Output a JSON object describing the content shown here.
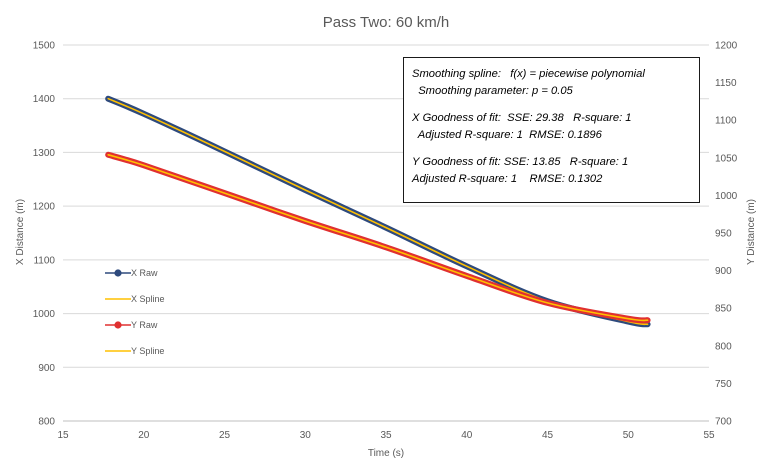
{
  "chart_data": {
    "type": "line",
    "title": "Pass Two: 60 km/h",
    "xlabel": "Time (s)",
    "ylabel": "X Distance (m)",
    "y2label": "Y Distance (m)",
    "xlim": [
      15,
      55
    ],
    "ylim": [
      800,
      1500
    ],
    "y2lim": [
      700,
      1200
    ],
    "xticks": [
      "15",
      "20",
      "25",
      "30",
      "35",
      "40",
      "45",
      "50",
      "55"
    ],
    "yticks": [
      "800",
      "900",
      "1000",
      "1100",
      "1200",
      "1300",
      "1400",
      "1500"
    ],
    "y2ticks": [
      "700",
      "750",
      "800",
      "850",
      "900",
      "950",
      "1000",
      "1050",
      "1100",
      "1150",
      "1200"
    ],
    "grid": true,
    "legend_position": "left",
    "series": [
      {
        "name": "X Raw",
        "axis": "left",
        "color": "#2e4a7d",
        "x": [
          17.8,
          20,
          25,
          30,
          35,
          40,
          45,
          50,
          51.2
        ],
        "y": [
          1400,
          1372,
          1302,
          1230,
          1160,
          1088,
          1023,
          985,
          980
        ]
      },
      {
        "name": "X Spline",
        "axis": "left",
        "color": "#ffc000",
        "x": [
          17.8,
          20,
          25,
          30,
          35,
          40,
          45,
          50,
          51.2
        ],
        "y": [
          1400,
          1372,
          1302,
          1230,
          1160,
          1088,
          1023,
          985,
          980
        ]
      },
      {
        "name": "Y Raw",
        "axis": "right",
        "color": "#e03030",
        "x": [
          17.8,
          20,
          25,
          30,
          35,
          40,
          45,
          50,
          51.2
        ],
        "y": [
          1054,
          1040,
          1003,
          966,
          931,
          893,
          857,
          836,
          834
        ]
      },
      {
        "name": "Y Spline",
        "axis": "right",
        "color": "#ffc000",
        "x": [
          17.8,
          20,
          25,
          30,
          35,
          40,
          45,
          50,
          51.2
        ],
        "y": [
          1054,
          1040,
          1003,
          966,
          931,
          893,
          857,
          836,
          834
        ]
      }
    ],
    "annotation": [
      "Smoothing spline:   f(x) = piecewise polynomial",
      "  Smoothing parameter: p = 0.05",
      "X Goodness of fit:  SSE: 29.38   R-square: 1",
      "  Adjusted R-square: 1  RMSE: 0.1896",
      "Y Goodness of fit: SSE: 13.85   R-square: 1",
      "Adjusted R-square: 1    RMSE: 0.1302"
    ]
  }
}
